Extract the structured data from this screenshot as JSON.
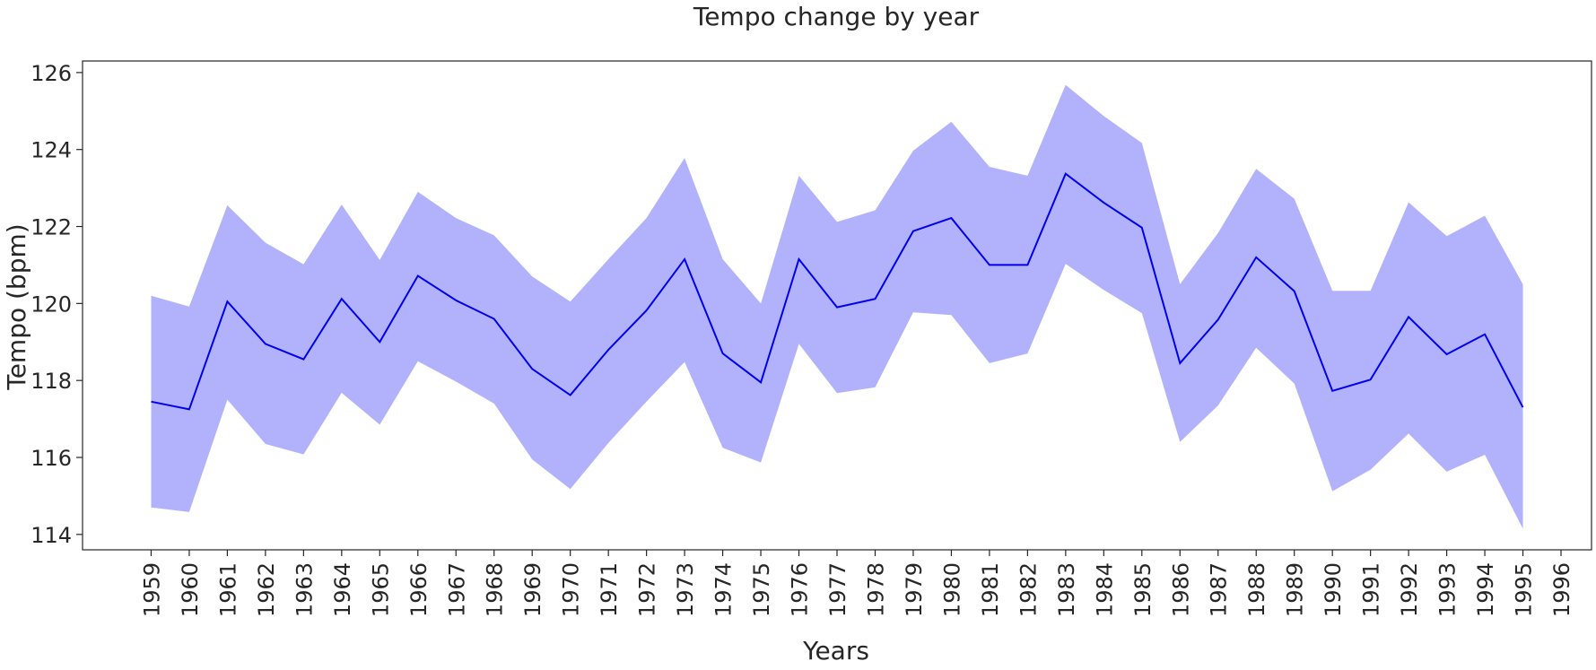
{
  "chart_data": {
    "type": "line",
    "title": "Tempo change by year",
    "xlabel": "Years",
    "ylabel": "Tempo (bpm)",
    "x": [
      1959,
      1960,
      1961,
      1962,
      1963,
      1964,
      1965,
      1966,
      1967,
      1968,
      1969,
      1970,
      1971,
      1972,
      1973,
      1974,
      1975,
      1976,
      1977,
      1978,
      1979,
      1980,
      1981,
      1982,
      1983,
      1984,
      1985,
      1986,
      1987,
      1988,
      1989,
      1990,
      1991,
      1992,
      1993,
      1994,
      1995
    ],
    "x_ticks": [
      1959,
      1960,
      1961,
      1962,
      1963,
      1964,
      1965,
      1966,
      1967,
      1968,
      1969,
      1970,
      1971,
      1972,
      1973,
      1974,
      1975,
      1976,
      1977,
      1978,
      1979,
      1980,
      1981,
      1982,
      1983,
      1984,
      1985,
      1986,
      1987,
      1988,
      1989,
      1990,
      1991,
      1992,
      1993,
      1994,
      1995,
      1996
    ],
    "xlim": [
      1957.2,
      1996.8
    ],
    "ylim": [
      113.6,
      126.3
    ],
    "y_ticks": [
      114,
      116,
      118,
      120,
      122,
      124,
      126
    ],
    "grid": false,
    "series": [
      {
        "values": [
          117.45,
          117.25,
          120.05,
          118.95,
          118.55,
          120.12,
          119.0,
          120.72,
          120.08,
          119.6,
          118.3,
          117.62,
          118.8,
          119.82,
          121.15,
          118.7,
          117.95,
          121.15,
          119.9,
          120.12,
          121.88,
          122.22,
          121.0,
          121.0,
          123.37,
          122.62,
          121.97,
          118.45,
          119.58,
          121.2,
          120.32,
          117.73,
          118.02,
          119.65,
          118.68,
          119.2,
          117.3
        ],
        "lower": [
          114.7,
          114.58,
          117.5,
          116.35,
          116.08,
          117.68,
          116.85,
          118.5,
          117.97,
          117.4,
          115.95,
          115.18,
          116.38,
          117.45,
          118.48,
          116.25,
          115.87,
          118.95,
          117.67,
          117.82,
          119.77,
          119.7,
          118.45,
          118.7,
          121.03,
          120.35,
          119.75,
          116.4,
          117.35,
          118.85,
          117.92,
          115.12,
          115.68,
          116.62,
          115.63,
          116.07,
          114.15
        ],
        "upper": [
          120.2,
          119.92,
          122.55,
          121.58,
          121.02,
          122.57,
          121.13,
          122.9,
          122.22,
          121.77,
          120.7,
          120.05,
          121.15,
          122.22,
          123.78,
          121.15,
          120.0,
          123.32,
          122.12,
          122.42,
          123.97,
          124.72,
          123.55,
          123.32,
          125.68,
          124.87,
          124.17,
          120.5,
          121.83,
          123.5,
          122.72,
          120.33,
          120.33,
          122.63,
          121.75,
          122.28,
          120.5
        ]
      }
    ],
    "colors": {
      "line": "#0000ee",
      "band": "#b2b2fc",
      "axis": "#262626",
      "background": "#ffffff"
    }
  }
}
